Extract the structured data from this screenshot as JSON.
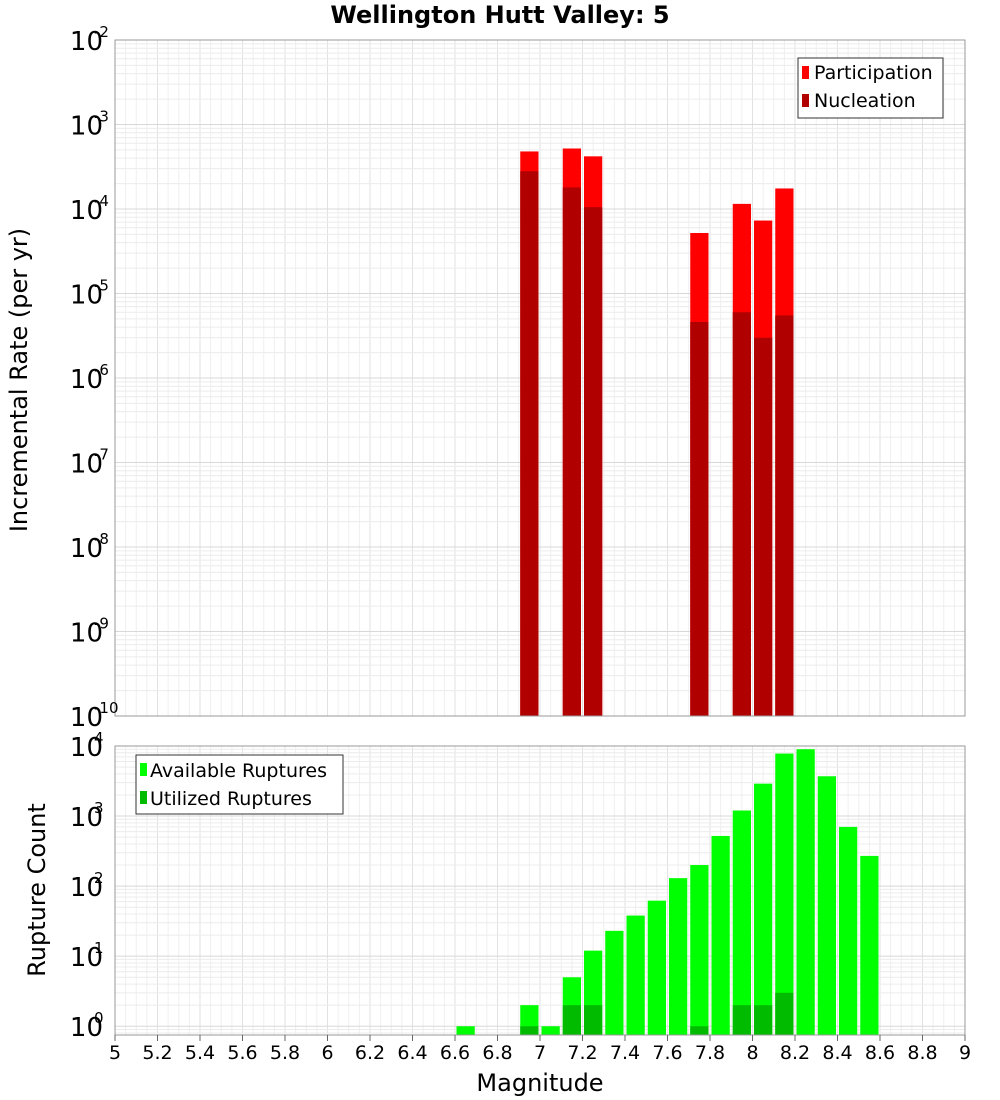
{
  "title": "Wellington Hutt Valley: 5",
  "chart_data": [
    {
      "type": "bar",
      "ylabel": "Incremental Rate (per yr)",
      "yscale": "log",
      "ylim": [
        1e-10,
        0.01
      ],
      "xlim": [
        5,
        9
      ],
      "grid": true,
      "legend_position": "top-right",
      "x": [
        6.95,
        7.15,
        7.25,
        7.75,
        7.95,
        8.05,
        8.15
      ],
      "series": [
        {
          "name": "Participation",
          "color": "#ff0000",
          "values": [
            0.00048,
            0.00052,
            0.00042,
            5.2e-05,
            0.000115,
            7.3e-05,
            0.000175
          ]
        },
        {
          "name": "Nucleation",
          "color": "#b00000",
          "values": [
            0.00028,
            0.00018,
            0.000105,
            4.6e-06,
            6e-06,
            3e-06,
            5.5e-06
          ]
        }
      ]
    },
    {
      "type": "bar",
      "xlabel": "Magnitude",
      "ylabel": "Rupture Count",
      "yscale": "log",
      "ylim": [
        0.75,
        10000
      ],
      "xlim": [
        5,
        9
      ],
      "grid": true,
      "legend_position": "top-left",
      "x": [
        6.65,
        6.95,
        7.05,
        7.15,
        7.25,
        7.35,
        7.45,
        7.55,
        7.65,
        7.75,
        7.85,
        7.95,
        8.05,
        8.15,
        8.25,
        8.35,
        8.45,
        8.55
      ],
      "series": [
        {
          "name": "Available Ruptures",
          "color": "#00ff00",
          "values": [
            1,
            2,
            1,
            5,
            12,
            23,
            38,
            62,
            130,
            200,
            520,
            1200,
            2900,
            7800,
            9000,
            3700,
            700,
            270
          ]
        },
        {
          "name": "Utilized Ruptures",
          "color": "#00bb00",
          "values": [
            0,
            1,
            0,
            2,
            2,
            0,
            0,
            0,
            0,
            1,
            0,
            2,
            2,
            3,
            0,
            0,
            0,
            0
          ]
        }
      ]
    }
  ],
  "axes": {
    "top_y_ticks": [
      {
        "base": "10",
        "exp": "-2",
        "v": 0.01
      },
      {
        "base": "10",
        "exp": "-3",
        "v": 0.001
      },
      {
        "base": "10",
        "exp": "-4",
        "v": 0.0001
      },
      {
        "base": "10",
        "exp": "-5",
        "v": 1e-05
      },
      {
        "base": "10",
        "exp": "-6",
        "v": 1e-06
      },
      {
        "base": "10",
        "exp": "-7",
        "v": 1e-07
      },
      {
        "base": "10",
        "exp": "-8",
        "v": 1e-08
      },
      {
        "base": "10",
        "exp": "-9",
        "v": 1e-09
      },
      {
        "base": "10",
        "exp": "-10",
        "v": 1e-10
      }
    ],
    "bottom_y_ticks": [
      {
        "base": "10",
        "exp": "4",
        "v": 10000
      },
      {
        "base": "10",
        "exp": "3",
        "v": 1000
      },
      {
        "base": "10",
        "exp": "2",
        "v": 100
      },
      {
        "base": "10",
        "exp": "1",
        "v": 10
      },
      {
        "base": "10",
        "exp": "0",
        "v": 1
      }
    ],
    "x_ticks": [
      "5",
      "5.2",
      "5.4",
      "5.6",
      "5.8",
      "6",
      "6.2",
      "6.4",
      "6.6",
      "6.8",
      "7",
      "7.2",
      "7.4",
      "7.6",
      "7.8",
      "8",
      "8.2",
      "8.4",
      "8.6",
      "8.8",
      "9"
    ]
  }
}
